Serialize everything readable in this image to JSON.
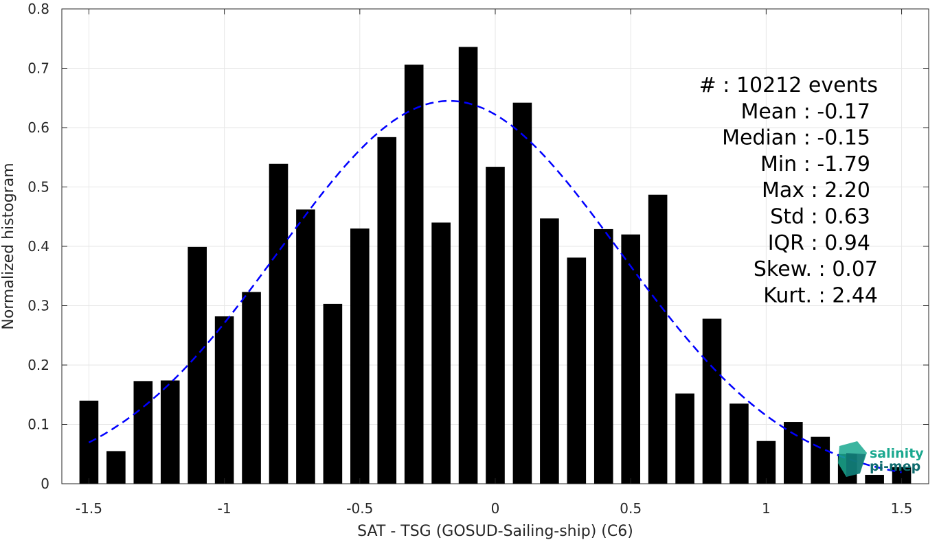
{
  "chart_data": {
    "type": "bar",
    "title": "",
    "xlabel": "SAT - TSG (GOSUD-Sailing-ship) (C6)",
    "ylabel": "Normalized histogram",
    "xlim": [
      -1.6,
      1.6
    ],
    "ylim": [
      0,
      0.8
    ],
    "grid": true,
    "x_ticks": [
      -1.5,
      -1,
      -0.5,
      0,
      0.5,
      1,
      1.5
    ],
    "x_tick_labels": [
      "-1.5",
      "-1",
      "-0.5",
      "0",
      "0.5",
      "1",
      "1.5"
    ],
    "y_ticks": [
      0,
      0.1,
      0.2,
      0.3,
      0.4,
      0.5,
      0.6,
      0.7,
      0.8
    ],
    "y_tick_labels": [
      "0",
      "0.1",
      "0.2",
      "0.3",
      "0.4",
      "0.5",
      "0.6",
      "0.7",
      "0.8"
    ],
    "bar_width": 0.07,
    "bar_color": "#000000",
    "x": [
      -1.5,
      -1.4,
      -1.3,
      -1.2,
      -1.1,
      -1.0,
      -0.9,
      -0.8,
      -0.7,
      -0.6,
      -0.5,
      -0.4,
      -0.3,
      -0.2,
      -0.1,
      0.0,
      0.1,
      0.2,
      0.3,
      0.4,
      0.5,
      0.6,
      0.7,
      0.8,
      0.9,
      1.0,
      1.1,
      1.2,
      1.3,
      1.4,
      1.5
    ],
    "values": [
      0.14,
      0.055,
      0.173,
      0.174,
      0.399,
      0.282,
      0.323,
      0.539,
      0.462,
      0.303,
      0.43,
      0.584,
      0.706,
      0.44,
      0.736,
      0.534,
      0.642,
      0.447,
      0.381,
      0.429,
      0.42,
      0.487,
      0.152,
      0.278,
      0.135,
      0.072,
      0.104,
      0.079,
      0.05,
      0.015,
      0.028
    ],
    "fit": {
      "type": "normal",
      "mean": -0.17,
      "std": 0.63,
      "peak": 0.645,
      "x_range": [
        -1.5,
        1.5
      ],
      "color": "#0000ff",
      "style": "dashed"
    }
  },
  "stats": [
    {
      "label": "#  : 10212 events",
      "anchor": "end"
    },
    {
      "label": "Mean : -0.17",
      "anchor": "end"
    },
    {
      "label": "Median : -0.15",
      "anchor": "end"
    },
    {
      "label": "Min : -1.79",
      "anchor": "end"
    },
    {
      "label": "Max : 2.20",
      "anchor": "end"
    },
    {
      "label": "Std : 0.63",
      "anchor": "end"
    },
    {
      "label": "IQR : 0.94",
      "anchor": "end"
    },
    {
      "label": "Skew. : 0.07",
      "anchor": "end"
    },
    {
      "label": "Kurt. : 2.44",
      "anchor": "end"
    }
  ],
  "logo": {
    "line1": "salinity",
    "line2": "pi-mep",
    "color_primary": "#1aa88f",
    "color_secondary": "#0e6b6e"
  }
}
